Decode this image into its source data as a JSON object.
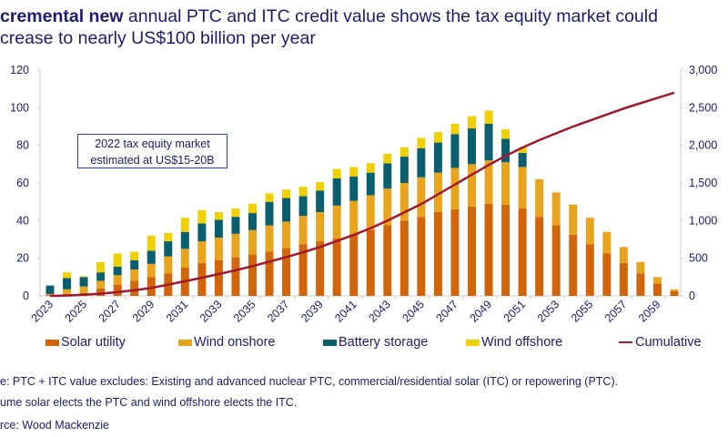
{
  "title": {
    "bold": "cremental new",
    "line1_rest": " annual PTC and ITC credit value shows the tax equity market could",
    "line2": "crease to nearly US$100 billion per year"
  },
  "annotation": {
    "line1": "2022 tax equity market",
    "line2": "estimated at US$15-20B"
  },
  "footnotes": {
    "note1": "e: PTC + ITC value excludes: Existing and advanced nuclear PTC, commercial/residential solar (ITC) or repowering (PTC).",
    "note2": "ume solar elects the PTC and wind offshore elects the ITC.",
    "source": "rce: Wood Mackenzie"
  },
  "chart_data": {
    "type": "bar",
    "stacked": true,
    "categories": [
      2023,
      2024,
      2025,
      2026,
      2027,
      2028,
      2029,
      2030,
      2031,
      2032,
      2033,
      2034,
      2035,
      2036,
      2037,
      2038,
      2039,
      2040,
      2041,
      2042,
      2043,
      2044,
      2045,
      2046,
      2047,
      2048,
      2049,
      2050,
      2051,
      2052,
      2053,
      2054,
      2055,
      2056,
      2057,
      2058,
      2059,
      2060
    ],
    "x_tick_labels": [
      "2023",
      "2025",
      "2027",
      "2029",
      "2031",
      "2033",
      "2035",
      "2037",
      "2039",
      "2041",
      "2043",
      "2045",
      "2047",
      "2049",
      "2051",
      "2053",
      "2055",
      "2057",
      "2059"
    ],
    "ylim": [
      0,
      120
    ],
    "y_ticks": [
      "0",
      "20",
      "40",
      "60",
      "80",
      "100",
      "120"
    ],
    "y2lim": [
      0,
      3000
    ],
    "y2_ticks": [
      "0",
      "500",
      "1,000",
      "1,500",
      "2,000",
      "2,500",
      "3,000"
    ],
    "grid": false,
    "legend_placement": "bottom",
    "series": [
      {
        "name": "Solar utility",
        "color": "#d2640a",
        "values": [
          0.5,
          1,
          1.5,
          4,
          6,
          8,
          10,
          12,
          15,
          17.5,
          19,
          20.5,
          22,
          23.5,
          25.5,
          27.5,
          29,
          30.5,
          33,
          35,
          37.5,
          40,
          42,
          44.5,
          46,
          47.5,
          49,
          48.5,
          46.5,
          42,
          37.5,
          32.5,
          27.5,
          22.5,
          17.5,
          12,
          6.5,
          2.5
        ]
      },
      {
        "name": "Wind onshore",
        "color": "#e8a41c",
        "values": [
          0.5,
          2.5,
          3.5,
          4,
          5,
          6,
          7,
          9,
          10,
          11.5,
          12,
          12.5,
          13,
          14,
          14,
          15,
          15.5,
          17.5,
          17.5,
          18.5,
          19.5,
          20,
          21,
          21,
          22,
          22.5,
          23,
          22.5,
          22,
          20,
          17.5,
          16,
          14,
          11.5,
          8.5,
          6,
          3.5,
          1
        ]
      },
      {
        "name": "Battery storage",
        "color": "#0a5f6e",
        "values": [
          4.5,
          6,
          5,
          4.5,
          4.5,
          5,
          7,
          8,
          9,
          9.5,
          9.5,
          9,
          9,
          12.5,
          12.5,
          10.5,
          11.5,
          14.5,
          13,
          12,
          13.5,
          14,
          15.5,
          16,
          18,
          19,
          19.5,
          12.5,
          7.5,
          0,
          0,
          0,
          0,
          0,
          0,
          0,
          0,
          0
        ]
      },
      {
        "name": "Wind offshore",
        "color": "#f0d000",
        "values": [
          0,
          3,
          0.5,
          5.5,
          7,
          4.5,
          8,
          4.5,
          7.5,
          7,
          4,
          4.5,
          5,
          4.5,
          4.5,
          5,
          4.5,
          5,
          5,
          5,
          5,
          5,
          5.5,
          5.5,
          5.5,
          6.5,
          7,
          5,
          3,
          0,
          0,
          0,
          0,
          0,
          0,
          0,
          0,
          0
        ]
      },
      {
        "name": "Cumulative",
        "color": "#a0182e",
        "axis": "right",
        "type": "line",
        "values": [
          0,
          5,
          15,
          30,
          50,
          75,
          105,
          150,
          195,
          240,
          290,
          340,
          395,
          455,
          515,
          580,
          650,
          730,
          810,
          900,
          1000,
          1110,
          1220,
          1350,
          1480,
          1610,
          1740,
          1860,
          1970,
          2070,
          2160,
          2250,
          2330,
          2410,
          2490,
          2560,
          2630,
          2700
        ]
      }
    ]
  }
}
